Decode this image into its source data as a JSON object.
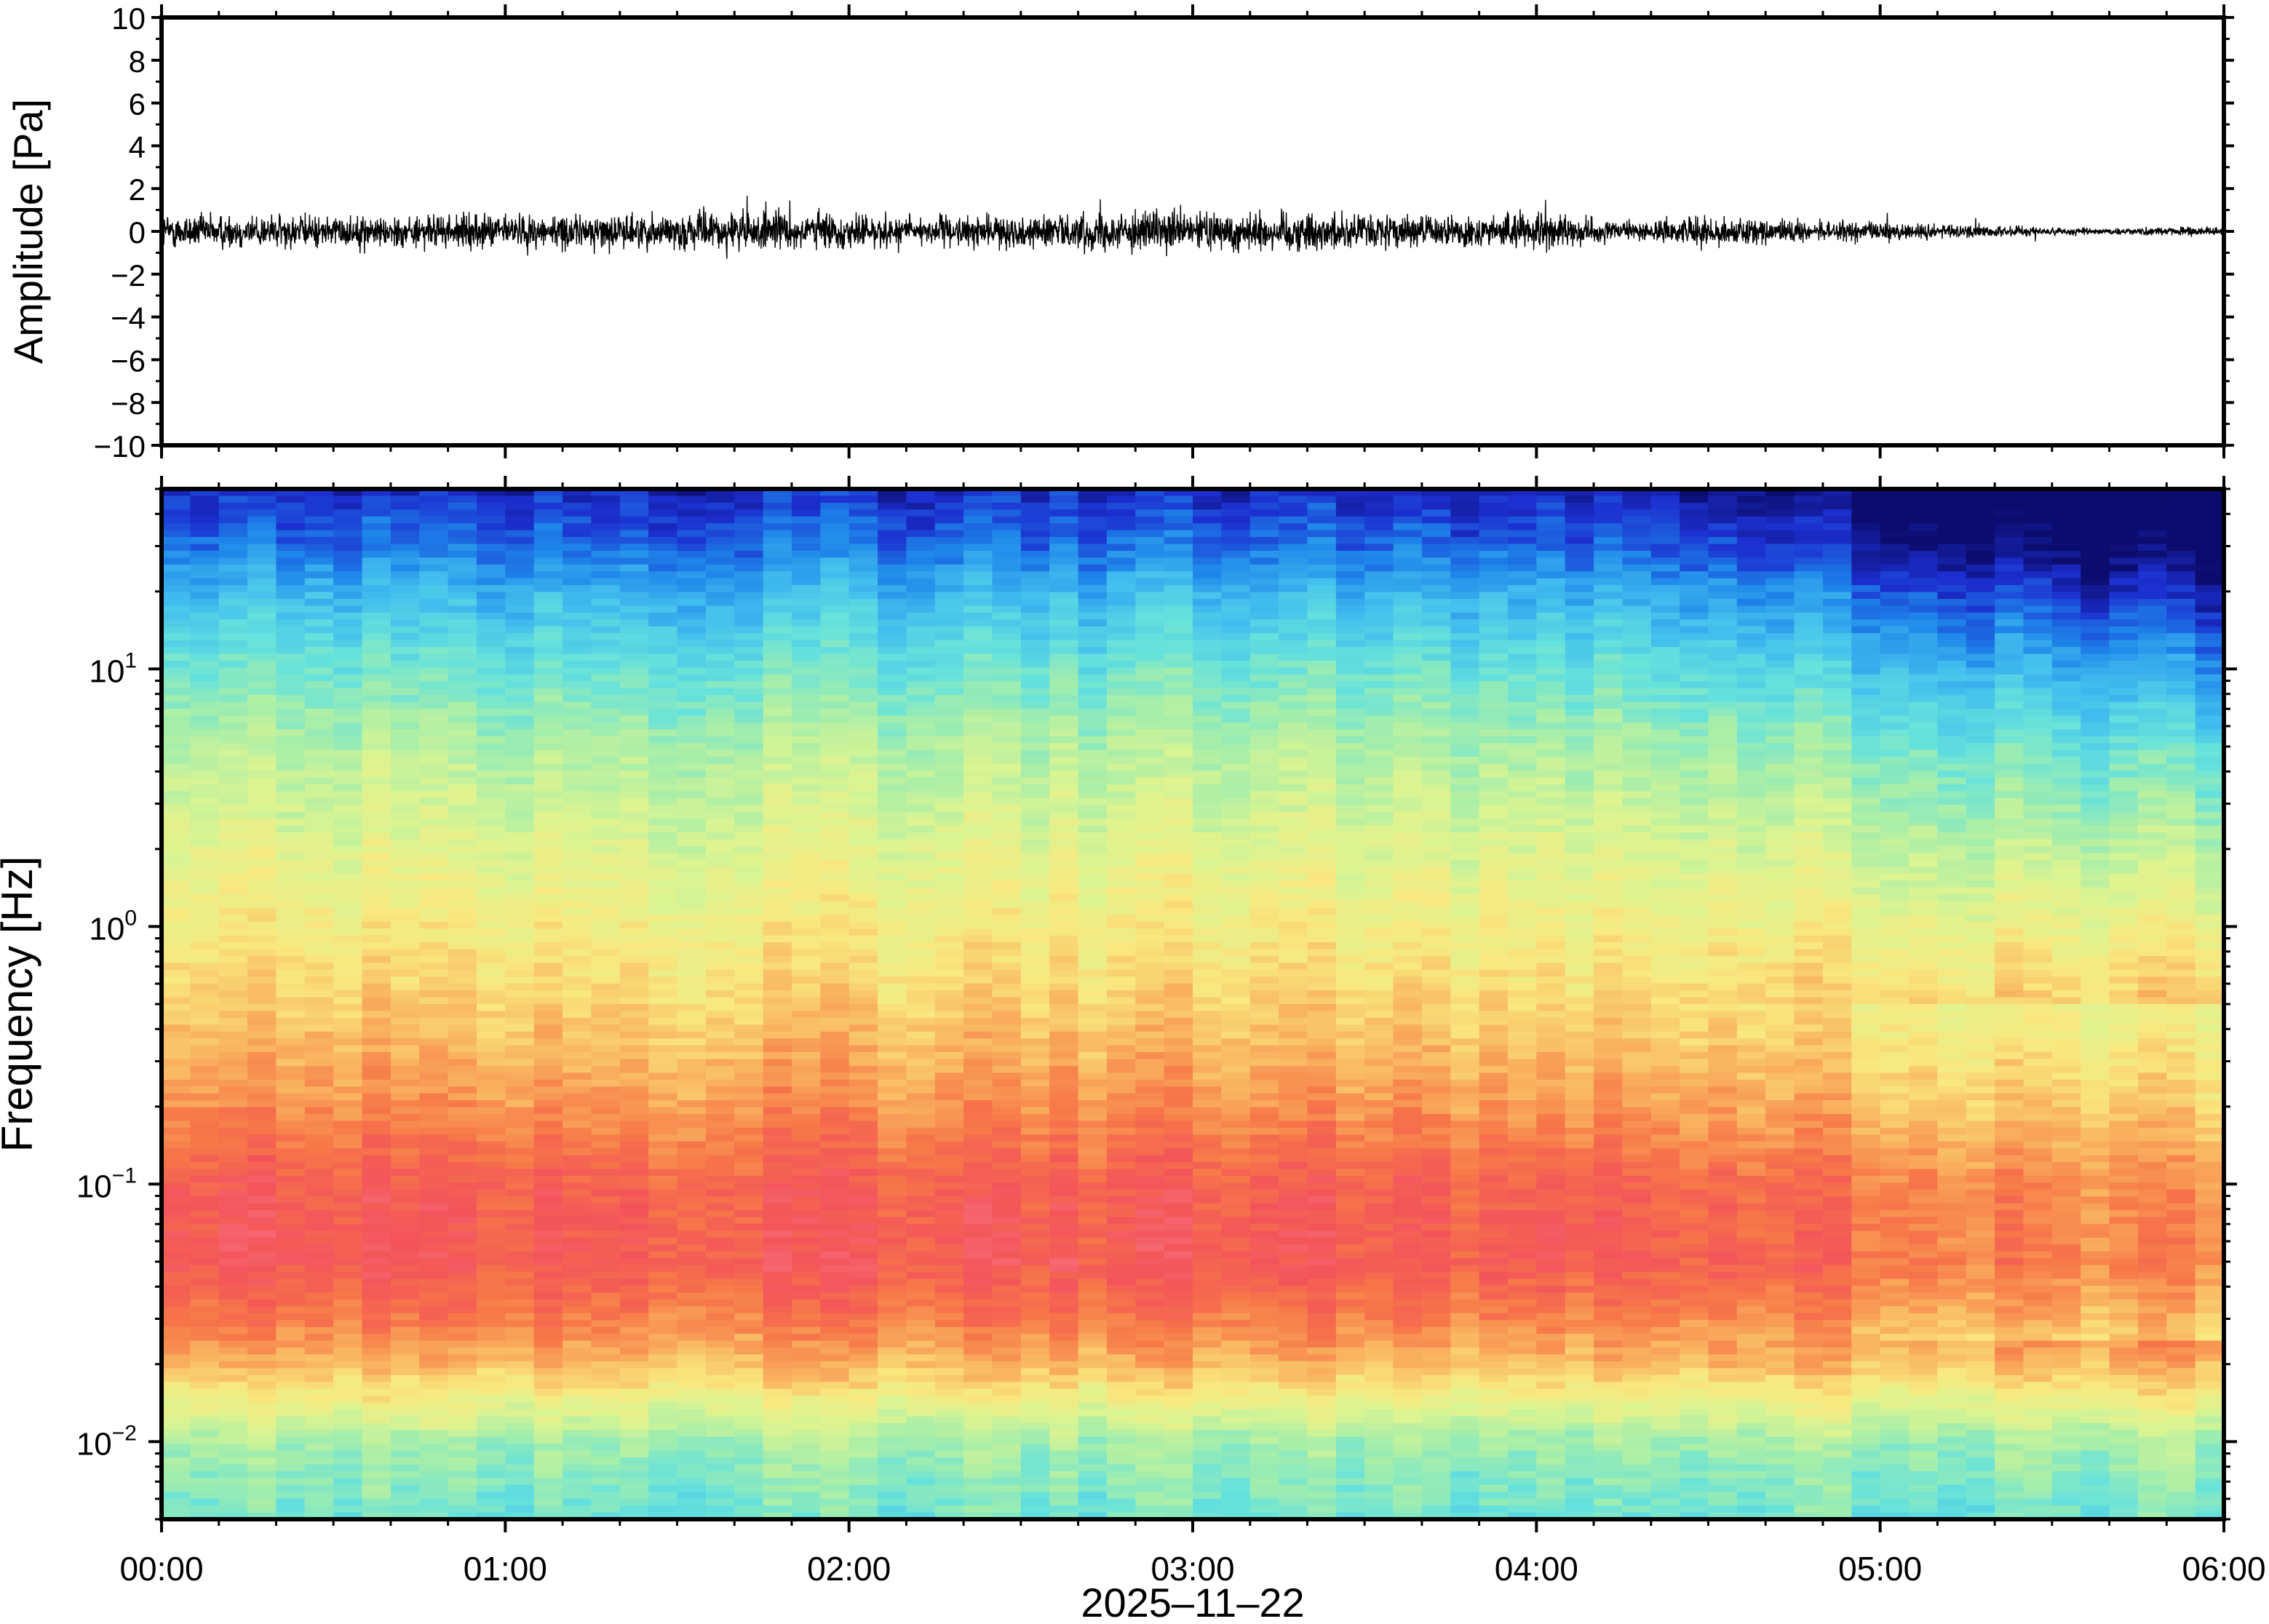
{
  "chart_data": [
    {
      "type": "line",
      "ylabel": "Amplitude [Pa]",
      "ylim": [
        -10,
        10
      ],
      "y_ticks": [
        10,
        8,
        6,
        4,
        2,
        0,
        -2,
        -4,
        -6,
        -8,
        -10
      ],
      "y_tick_labels": [
        "10",
        "8",
        "6",
        "4",
        "2",
        "0",
        "−2",
        "−4",
        "−6",
        "−8",
        "−10"
      ],
      "xlim": [
        "00:00",
        "06:00"
      ],
      "series": [
        {
          "color": "#000000",
          "envelope_time_h": [
            0,
            0.25,
            0.5,
            0.75,
            1.0,
            1.25,
            1.5,
            1.75,
            2.0,
            2.25,
            2.5,
            2.75,
            3.0,
            3.25,
            3.5,
            3.75,
            4.0,
            4.25,
            4.5,
            4.75,
            5.0,
            5.25,
            5.5,
            5.75,
            6.0
          ],
          "envelope_amp_pa": [
            1.0,
            1.0,
            0.9,
            0.9,
            1.0,
            0.95,
            1.0,
            1.2,
            1.0,
            0.85,
            0.9,
            1.1,
            1.1,
            1.2,
            1.0,
            0.85,
            1.1,
            0.5,
            0.9,
            0.6,
            0.55,
            0.4,
            0.25,
            0.2,
            0.3
          ]
        }
      ],
      "grid": false
    },
    {
      "type": "heatmap",
      "ylabel": "Frequency [Hz]",
      "xlabel": "2025–11–22",
      "y_scale": "log",
      "ylim_hz": [
        0.005,
        50
      ],
      "y_ticks_hz": [
        10,
        1,
        0.1,
        0.01
      ],
      "y_tick_labels": [
        {
          "base": "10",
          "exp": "1"
        },
        {
          "base": "10",
          "exp": "0"
        },
        {
          "base": "10",
          "exp": "−1"
        },
        {
          "base": "10",
          "exp": "−2"
        }
      ],
      "x_tick_labels": [
        "00:00",
        "01:00",
        "02:00",
        "03:00",
        "04:00",
        "05:00",
        "06:00"
      ],
      "xlim_h": [
        0,
        6
      ],
      "colormap": [
        "#0c0c6e",
        "#1c2fd0",
        "#1e86ea",
        "#44c0ee",
        "#66e2dc",
        "#a6eeaa",
        "#dcf491",
        "#f9e87f",
        "#f9b460",
        "#f77848",
        "#f3545a",
        "#fb7a88"
      ],
      "profile_freq_hz": [
        50,
        30,
        20,
        10,
        5,
        2,
        1,
        0.5,
        0.2,
        0.1,
        0.05,
        0.03,
        0.02,
        0.01,
        0.005
      ],
      "profile_level": [
        0.08,
        0.16,
        0.26,
        0.38,
        0.48,
        0.56,
        0.62,
        0.68,
        0.78,
        0.88,
        0.9,
        0.82,
        0.72,
        0.46,
        0.38
      ],
      "late_quiet_start_h": 4.2,
      "grid": false
    }
  ]
}
